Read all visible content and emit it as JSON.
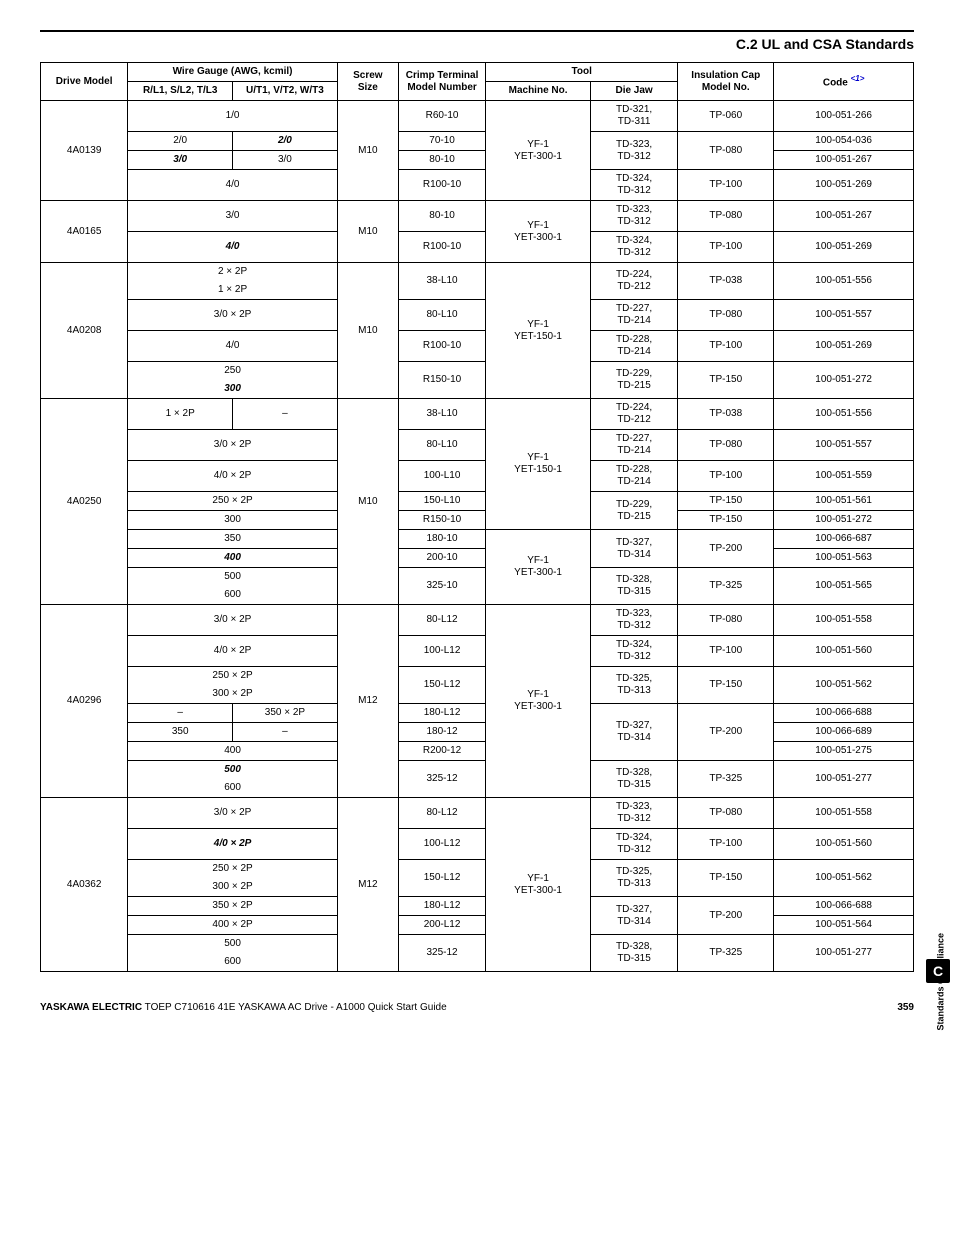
{
  "section_title": "C.2 UL and CSA Standards",
  "columns": {
    "drive_model": "Drive Model",
    "wire_gauge": "Wire Gauge (AWG, kcmil)",
    "rl": "R/L1, S/L2, T/L3",
    "ut": "U/T1, V/T2, W/T3",
    "screw": "Screw Size",
    "crimp": "Crimp Terminal Model Number",
    "tool": "Tool",
    "machine": "Machine No.",
    "die": "Die Jaw",
    "ins": "Insulation Cap Model No.",
    "code": "Code",
    "code_note": "<1>"
  },
  "models": [
    {
      "name": "4A0139",
      "screw": "M10",
      "machine_groups": [
        {
          "machine": "YF-1\nYET-300-1",
          "span": 4
        }
      ],
      "rows": [
        {
          "rl_span": 2,
          "wire": "1/0",
          "crimp": "R60-10",
          "die": "TD-321,\nTD-311",
          "ins": "TP-060",
          "code": "100-051-266"
        },
        {
          "rl": "2/0",
          "ut": "2/0",
          "ut_bi": true,
          "crimp": "70-10",
          "die": "TD-323,\nTD-312",
          "die_span": 2,
          "ins": "TP-080",
          "ins_span": 2,
          "code": "100-054-036"
        },
        {
          "rl": "3/0",
          "rl_bi": true,
          "ut": "3/0",
          "crimp": "80-10",
          "code": "100-051-267"
        },
        {
          "rl_span": 2,
          "wire": "4/0",
          "crimp": "R100-10",
          "die": "TD-324,\nTD-312",
          "ins": "TP-100",
          "code": "100-051-269"
        }
      ]
    },
    {
      "name": "4A0165",
      "screw": "M10",
      "machine_groups": [
        {
          "machine": "YF-1\nYET-300-1",
          "span": 2
        }
      ],
      "rows": [
        {
          "rl_span": 2,
          "wire": "3/0",
          "crimp": "80-10",
          "die": "TD-323,\nTD-312",
          "ins": "TP-080",
          "code": "100-051-267"
        },
        {
          "rl_span": 2,
          "wire": "4/0",
          "wire_bi": true,
          "crimp": "R100-10",
          "die": "TD-324,\nTD-312",
          "ins": "TP-100",
          "code": "100-051-269"
        }
      ]
    },
    {
      "name": "4A0208",
      "screw": "M10",
      "machine_groups": [
        {
          "machine": "YF-1\nYET-150-1",
          "span": 6
        }
      ],
      "rows": [
        {
          "rl_span": 2,
          "wire": "2 × 2P",
          "bottom_open": true,
          "crimp": "38-L10",
          "crimp_span": 2,
          "die": "TD-224,\nTD-212",
          "die_span": 2,
          "ins": "TP-038",
          "ins_span": 2,
          "code": "100-051-556",
          "code_span": 2
        },
        {
          "rl_span": 2,
          "wire": "1 × 2P"
        },
        {
          "rl_span": 2,
          "wire": "3/0 × 2P",
          "crimp": "80-L10",
          "die": "TD-227,\nTD-214",
          "ins": "TP-080",
          "code": "100-051-557"
        },
        {
          "rl_span": 2,
          "wire": "4/0",
          "crimp": "R100-10",
          "die": "TD-228,\nTD-214",
          "ins": "TP-100",
          "code": "100-051-269"
        },
        {
          "rl_span": 2,
          "wire": "250",
          "bottom_open": true,
          "crimp": "R150-10",
          "crimp_span": 2,
          "die": "TD-229,\nTD-215",
          "die_span": 2,
          "ins": "TP-150",
          "ins_span": 2,
          "code": "100-051-272",
          "code_span": 2
        },
        {
          "rl_span": 2,
          "wire": "300",
          "wire_bi": true
        }
      ]
    },
    {
      "name": "4A0250",
      "screw": "M10",
      "machine_groups": [
        {
          "machine": "YF-1\nYET-150-1",
          "span": 5
        },
        {
          "machine": "YF-1\nYET-300-1",
          "span": 4
        }
      ],
      "rows": [
        {
          "rl": "1 × 2P",
          "ut": "–",
          "crimp": "38-L10",
          "die": "TD-224,\nTD-212",
          "ins": "TP-038",
          "code": "100-051-556"
        },
        {
          "rl_span": 2,
          "wire": "3/0 × 2P",
          "crimp": "80-L10",
          "die": "TD-227,\nTD-214",
          "ins": "TP-080",
          "code": "100-051-557"
        },
        {
          "rl_span": 2,
          "wire": "4/0 × 2P",
          "crimp": "100-L10",
          "die": "TD-228,\nTD-214",
          "ins": "TP-100",
          "code": "100-051-559"
        },
        {
          "rl_span": 2,
          "wire": "250 × 2P",
          "crimp": "150-L10",
          "die": "TD-229,\nTD-215",
          "die_span": 2,
          "ins": "TP-150",
          "code": "100-051-561"
        },
        {
          "rl_span": 2,
          "wire": "300",
          "crimp": "R150-10",
          "ins": "TP-150",
          "code": "100-051-272"
        },
        {
          "rl_span": 2,
          "wire": "350",
          "crimp": "180-10",
          "die": "TD-327,\nTD-314",
          "die_span": 2,
          "ins": "TP-200",
          "ins_span": 2,
          "code": "100-066-687"
        },
        {
          "rl_span": 2,
          "wire": "400",
          "wire_bi": true,
          "crimp": "200-10",
          "code": "100-051-563"
        },
        {
          "rl_span": 2,
          "wire": "500",
          "bottom_open": true,
          "crimp": "325-10",
          "crimp_span": 2,
          "die": "TD-328,\nTD-315",
          "die_span": 2,
          "ins": "TP-325",
          "ins_span": 2,
          "code": "100-051-565",
          "code_span": 2
        },
        {
          "rl_span": 2,
          "wire": "600"
        }
      ]
    },
    {
      "name": "4A0296",
      "screw": "M12",
      "machine_groups": [
        {
          "machine": "YF-1\nYET-300-1",
          "span": 9
        }
      ],
      "rows": [
        {
          "rl_span": 2,
          "wire": "3/0 × 2P",
          "crimp": "80-L12",
          "die": "TD-323,\nTD-312",
          "ins": "TP-080",
          "code": "100-051-558"
        },
        {
          "rl_span": 2,
          "wire": "4/0 × 2P",
          "crimp": "100-L12",
          "die": "TD-324,\nTD-312",
          "ins": "TP-100",
          "code": "100-051-560"
        },
        {
          "rl_span": 2,
          "wire": "250 × 2P",
          "bottom_open": true,
          "crimp": "150-L12",
          "crimp_span": 2,
          "die": "TD-325,\nTD-313",
          "die_span": 2,
          "ins": "TP-150",
          "ins_span": 2,
          "code": "100-051-562",
          "code_span": 2
        },
        {
          "rl_span": 2,
          "wire": "300 × 2P"
        },
        {
          "rl": "–",
          "ut": "350 × 2P",
          "crimp": "180-L12",
          "die": "TD-327,\nTD-314",
          "die_span": 3,
          "ins": "TP-200",
          "ins_span": 3,
          "code": "100-066-688"
        },
        {
          "rl": "350",
          "ut": "–",
          "crimp": "180-12",
          "code": "100-066-689"
        },
        {
          "rl_span": 2,
          "wire": "400",
          "crimp": "R200-12",
          "code": "100-051-275"
        },
        {
          "rl_span": 2,
          "wire": "500",
          "wire_bi": true,
          "bottom_open": true,
          "crimp": "325-12",
          "crimp_span": 2,
          "die": "TD-328,\nTD-315",
          "die_span": 2,
          "ins": "TP-325",
          "ins_span": 2,
          "code": "100-051-277",
          "code_span": 2
        },
        {
          "rl_span": 2,
          "wire": "600"
        }
      ]
    },
    {
      "name": "4A0362",
      "screw": "M12",
      "machine_groups": [
        {
          "machine": "YF-1\nYET-300-1",
          "span": 8
        }
      ],
      "rows": [
        {
          "rl_span": 2,
          "wire": "3/0 × 2P",
          "crimp": "80-L12",
          "die": "TD-323,\nTD-312",
          "ins": "TP-080",
          "code": "100-051-558"
        },
        {
          "rl_span": 2,
          "wire": "4/0 × 2P",
          "wire_bi": true,
          "crimp": "100-L12",
          "die": "TD-324,\nTD-312",
          "ins": "TP-100",
          "code": "100-051-560"
        },
        {
          "rl_span": 2,
          "wire": "250 × 2P",
          "bottom_open": true,
          "crimp": "150-L12",
          "crimp_span": 2,
          "die": "TD-325,\nTD-313",
          "die_span": 2,
          "ins": "TP-150",
          "ins_span": 2,
          "code": "100-051-562",
          "code_span": 2
        },
        {
          "rl_span": 2,
          "wire": "300 × 2P"
        },
        {
          "rl_span": 2,
          "wire": "350 × 2P",
          "crimp": "180-L12",
          "die": "TD-327,\nTD-314",
          "die_span": 2,
          "ins": "TP-200",
          "ins_span": 2,
          "code": "100-066-688"
        },
        {
          "rl_span": 2,
          "wire": "400 × 2P",
          "crimp": "200-L12",
          "code": "100-051-564"
        },
        {
          "rl_span": 2,
          "wire": "500",
          "bottom_open": true,
          "crimp": "325-12",
          "crimp_span": 2,
          "die": "TD-328,\nTD-315",
          "die_span": 2,
          "ins": "TP-325",
          "ins_span": 2,
          "code": "100-051-277",
          "code_span": 2
        },
        {
          "rl_span": 2,
          "wire": "600"
        }
      ]
    }
  ],
  "footer": {
    "brand": "YASKAWA ELECTRIC",
    "doc": " TOEP C710616 41E YASKAWA AC Drive - A1000 Quick Start Guide",
    "page": "359"
  },
  "side_label": "Standards Compliance",
  "badge": "C"
}
